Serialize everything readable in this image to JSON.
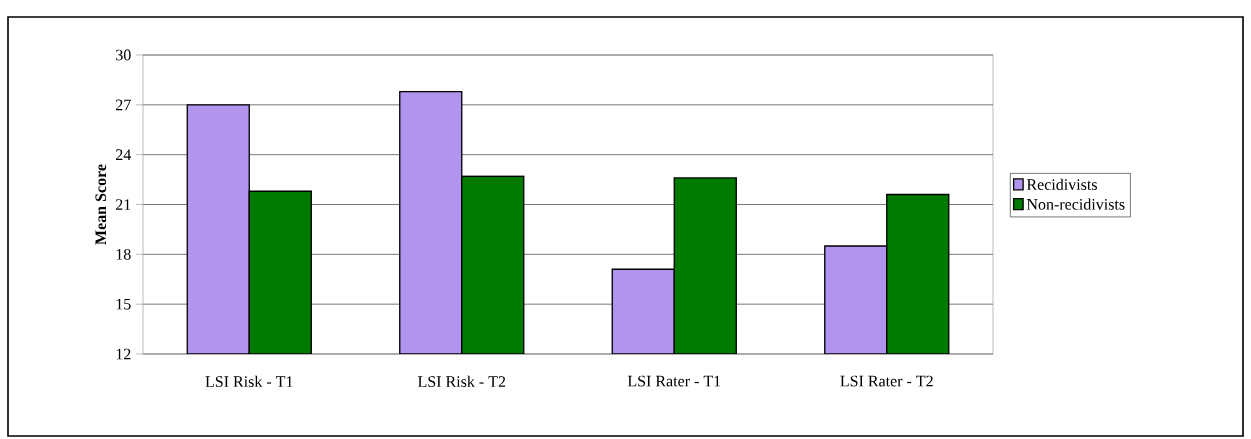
{
  "chart_data": {
    "type": "bar",
    "ylabel": "Mean Score",
    "categories": [
      "LSI Risk - T1",
      "LSI Risk - T2",
      "LSI Rater - T1",
      "LSI Rater - T2"
    ],
    "series": [
      {
        "name": "Recidivists",
        "color": "#b194ee",
        "values": [
          27.0,
          27.8,
          17.1,
          18.5
        ]
      },
      {
        "name": "Non-recidivists",
        "color": "#007a00",
        "values": [
          21.8,
          22.7,
          22.6,
          21.6
        ]
      }
    ],
    "ylim": [
      12,
      30
    ],
    "yticks": [
      12,
      15,
      18,
      21,
      24,
      27,
      30
    ],
    "grid": "y",
    "legend": "right"
  }
}
